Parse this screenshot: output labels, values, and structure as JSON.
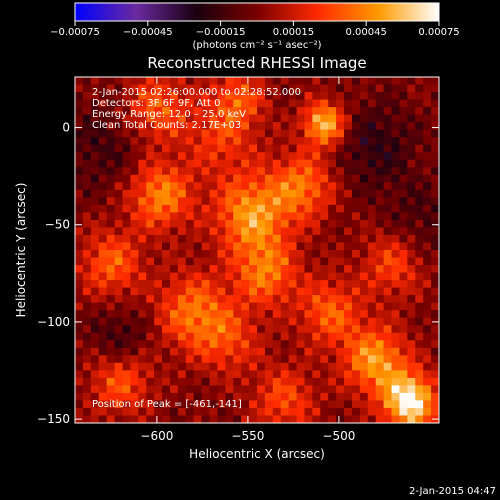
{
  "chart_data": {
    "type": "heatmap",
    "title": "Reconstructed RHESSI Image",
    "xlabel": "Heliocentric X (arcsec)",
    "ylabel": "Heliocentric Y (arcsec)",
    "xlim": [
      -645,
      -445
    ],
    "ylim": [
      -152,
      26
    ],
    "xticks": [
      {
        "value": -600,
        "label": "−600"
      },
      {
        "value": -550,
        "label": "−550"
      },
      {
        "value": -500,
        "label": "−500"
      }
    ],
    "yticks": [
      {
        "value": 0,
        "label": "0"
      },
      {
        "value": -50,
        "label": "−50"
      },
      {
        "value": -100,
        "label": "−100"
      },
      {
        "value": -150,
        "label": "−150"
      }
    ],
    "colorbar": {
      "range": [
        -0.00075,
        0.00075
      ],
      "ticks": [
        {
          "value": -0.00075,
          "label": "−0.00075"
        },
        {
          "value": -0.00045,
          "label": "−0.00045"
        },
        {
          "value": -0.00015,
          "label": "−0.00015"
        },
        {
          "value": 0.00015,
          "label": "0.00015"
        },
        {
          "value": 0.00045,
          "label": "0.00045"
        },
        {
          "value": 0.00075,
          "label": "0.00075"
        }
      ],
      "units": "(photons cm⁻² s⁻¹ asec⁻²)",
      "colors": [
        "#0000ff",
        "#6a2aa0",
        "#1a0010",
        "#7a0000",
        "#ff2a00",
        "#ff9a00",
        "#ffffff"
      ]
    },
    "info": {
      "time": "2-Jan-2015 02:26:00.000 to 02:28:52.000",
      "detectors": "Detectors: 3F 6F 9F, Att 0",
      "energy": "Energy Range: 12.0 – 25.0 keV",
      "clean": "Clean       Total Counts: 2.17E+03",
      "peak": "Position of Peak = [-461,-141]"
    },
    "hotspots": [
      {
        "x": -508,
        "y": 2,
        "z": 0.0006,
        "s": 8
      },
      {
        "x": -548,
        "y": -45,
        "z": 0.0005,
        "s": 14
      },
      {
        "x": -520,
        "y": -30,
        "z": 0.0004,
        "s": 12
      },
      {
        "x": -598,
        "y": -35,
        "z": 0.00045,
        "s": 12
      },
      {
        "x": -565,
        "y": -5,
        "z": 0.00025,
        "s": 14
      },
      {
        "x": -540,
        "y": -75,
        "z": 0.0004,
        "s": 12
      },
      {
        "x": -580,
        "y": -95,
        "z": 0.0004,
        "s": 14
      },
      {
        "x": -625,
        "y": -70,
        "z": 0.00035,
        "s": 12
      },
      {
        "x": -505,
        "y": -95,
        "z": 0.00035,
        "s": 12
      },
      {
        "x": -470,
        "y": -70,
        "z": 0.0003,
        "s": 12
      },
      {
        "x": -461,
        "y": -141,
        "z": 0.00075,
        "s": 10
      },
      {
        "x": -480,
        "y": -120,
        "z": 0.0005,
        "s": 12
      },
      {
        "x": -600,
        "y": 10,
        "z": 0.00035,
        "s": 12
      },
      {
        "x": -530,
        "y": -140,
        "z": 0.0003,
        "s": 12
      },
      {
        "x": -620,
        "y": -130,
        "z": 0.00035,
        "s": 12
      },
      {
        "x": -555,
        "y": 15,
        "z": 0.0003,
        "s": 10
      },
      {
        "x": -480,
        "y": -10,
        "z": -0.0002,
        "s": 16
      },
      {
        "x": -630,
        "y": -10,
        "z": -0.00015,
        "s": 16
      },
      {
        "x": -455,
        "y": -50,
        "z": -0.00015,
        "s": 14
      },
      {
        "x": -620,
        "y": -110,
        "z": -0.0002,
        "s": 12
      },
      {
        "x": -560,
        "y": -110,
        "z": 0.00025,
        "s": 12
      }
    ]
  },
  "footer_timestamp": "2-Jan-2015 04:47"
}
